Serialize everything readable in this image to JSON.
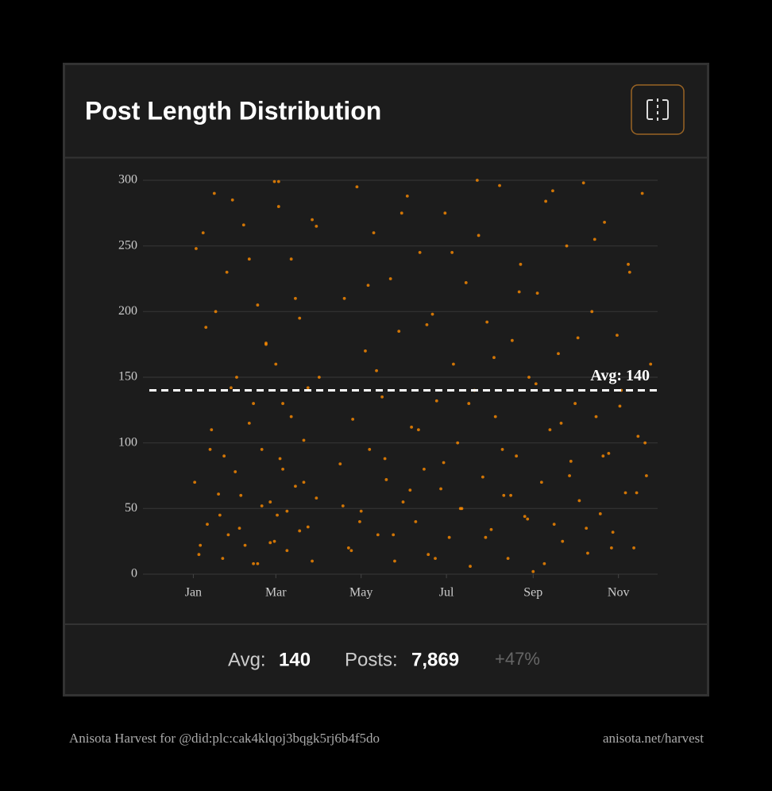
{
  "chart_data": {
    "type": "scatter",
    "title": "Post Length Distribution",
    "color": "#ff8c00",
    "xlim": [
      -36,
      332
    ],
    "ylim": [
      0,
      300
    ],
    "xticks": [
      {
        "value": 0,
        "label": "Jan"
      },
      {
        "value": 59,
        "label": "Mar"
      },
      {
        "value": 120,
        "label": "May"
      },
      {
        "value": 181,
        "label": "Jul"
      },
      {
        "value": 243,
        "label": "Sep"
      },
      {
        "value": 304,
        "label": "Nov"
      }
    ],
    "yticks": [
      0,
      50,
      100,
      150,
      200,
      250,
      300
    ],
    "grid": true,
    "avg_line": {
      "value": 140,
      "label": "Avg: 140"
    },
    "x": [
      2,
      5,
      9,
      12,
      15,
      18,
      21,
      24,
      27,
      30,
      33,
      36,
      40,
      43,
      46,
      49,
      52,
      55,
      58,
      59,
      60,
      61,
      62,
      64,
      67,
      70,
      73,
      76,
      79,
      82,
      85,
      88,
      90,
      105,
      108,
      111,
      114,
      117,
      120,
      123,
      126,
      129,
      132,
      135,
      138,
      141,
      144,
      147,
      150,
      153,
      156,
      159,
      162,
      165,
      168,
      171,
      174,
      177,
      180,
      183,
      186,
      189,
      192,
      195,
      198,
      201,
      204,
      207,
      210,
      213,
      216,
      219,
      222,
      225,
      228,
      231,
      234,
      237,
      240,
      243,
      246,
      249,
      252,
      255,
      258,
      261,
      264,
      267,
      270,
      273,
      276,
      279,
      282,
      285,
      288,
      291,
      294,
      297,
      300,
      303,
      306,
      309,
      312,
      315,
      318,
      321,
      324,
      327,
      1,
      4,
      7,
      10,
      13,
      16,
      19,
      22,
      25,
      28,
      31,
      34,
      37,
      40,
      43,
      46,
      49,
      52,
      55,
      58,
      61,
      64,
      67,
      70,
      73,
      76,
      79,
      82,
      85,
      88,
      107,
      113,
      119,
      125,
      131,
      137,
      143,
      149,
      155,
      161,
      167,
      173,
      179,
      185,
      191,
      197,
      203,
      209,
      215,
      221,
      227,
      233,
      239,
      245,
      251,
      257,
      263,
      269,
      275,
      281,
      287,
      293,
      299,
      305,
      311,
      317,
      323
    ],
    "values": [
      248,
      22,
      188,
      95,
      290,
      61,
      12,
      230,
      142,
      78,
      35,
      266,
      115,
      8,
      205,
      52,
      176,
      24,
      299,
      160,
      45,
      280,
      88,
      130,
      18,
      240,
      67,
      195,
      102,
      36,
      270,
      58,
      150,
      84,
      210,
      20,
      118,
      295,
      48,
      170,
      95,
      260,
      30,
      135,
      72,
      225,
      10,
      185,
      55,
      288,
      112,
      40,
      245,
      80,
      15,
      198,
      132,
      65,
      275,
      28,
      160,
      100,
      50,
      222,
      6,
      140,
      258,
      74,
      192,
      34,
      120,
      296,
      60,
      12,
      178,
      90,
      236,
      44,
      150,
      2,
      214,
      70,
      284,
      110,
      38,
      168,
      25,
      250,
      86,
      130,
      56,
      298,
      16,
      200,
      120,
      46,
      268,
      92,
      32,
      182,
      140,
      62,
      230,
      20,
      105,
      290,
      75,
      160,
      70,
      15,
      260,
      38,
      110,
      200,
      45,
      90,
      30,
      285,
      150,
      60,
      22,
      240,
      130,
      8,
      95,
      175,
      55,
      25,
      299,
      80,
      48,
      120,
      210,
      33,
      70,
      142,
      10,
      265,
      52,
      18,
      40,
      220,
      155,
      88,
      30,
      275,
      64,
      110,
      190,
      12,
      85,
      245,
      50,
      130,
      300,
      28,
      165,
      95,
      60,
      215,
      42,
      145,
      8,
      292,
      115,
      75,
      180,
      35,
      255,
      90,
      20,
      128,
      236,
      62,
      100
    ]
  },
  "footer_stats": [
    {
      "label": "Avg:",
      "value": "140"
    },
    {
      "label": "Posts:",
      "value": "7,869"
    }
  ],
  "change": "+47%",
  "footer": {
    "left": "Anisota Harvest for @did:plc:cak4klqoj3bqgk5rj6b4f5do",
    "right": "anisota.net/harvest"
  }
}
